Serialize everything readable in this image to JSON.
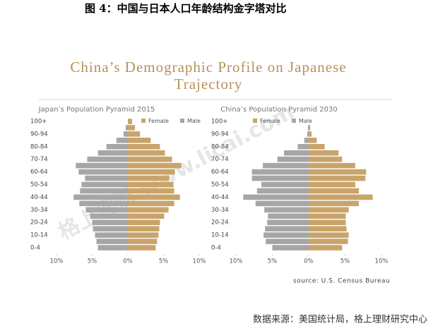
{
  "caption": "图 4：中国与日本人口年龄结构金字塔对比",
  "title_lines": [
    "China’s  Demographic Profile on Japanese",
    "Trajectory"
  ],
  "watermark": "格上理财 www.licai.com",
  "source": "source: U.S. Census  Bureau",
  "footer": "数据来源：美国统计局，格上理财研究中心",
  "chart_data": [
    {
      "type": "bar",
      "orientation": "horizontal",
      "title": "Japan’s Population Pyramid 2015",
      "categories": [
        "100+",
        null,
        "90-94",
        null,
        "80-84",
        null,
        "70-74",
        null,
        "60-64",
        null,
        "50-54",
        null,
        "40-44",
        null,
        "30-34",
        null,
        "20-24",
        null,
        "10-14",
        null,
        "0-4"
      ],
      "series": [
        {
          "name": "Female",
          "color": "#c9a46a",
          "values": [
            0.6,
            1.0,
            1.7,
            3.2,
            4.5,
            5.2,
            6.2,
            7.5,
            6.6,
            5.8,
            6.4,
            6.5,
            7.3,
            6.5,
            5.7,
            5.1,
            4.5,
            4.4,
            4.3,
            4.1,
            3.9
          ]
        },
        {
          "name": "Male",
          "color": "#a6a6a6",
          "values": [
            0,
            -0.3,
            -0.6,
            -1.6,
            -3.0,
            -4.2,
            -5.7,
            -7.3,
            -6.9,
            -6.0,
            -6.5,
            -6.7,
            -7.6,
            -6.8,
            -5.9,
            -5.3,
            -5.0,
            -4.9,
            -4.6,
            -4.4,
            -4.2
          ]
        }
      ],
      "xlim": [
        -10,
        10
      ],
      "xticks": [
        {
          "value": -10,
          "label": "10%"
        },
        {
          "value": -5,
          "label": "5%"
        },
        {
          "value": 0,
          "label": "0%"
        },
        {
          "value": 5,
          "label": "5%"
        },
        {
          "value": 10,
          "label": "10%"
        }
      ],
      "legend": "top-right"
    },
    {
      "type": "bar",
      "orientation": "horizontal",
      "title": "China’s Population Pyramid 2030",
      "categories": [
        "100+",
        null,
        "90-94",
        null,
        "80-84",
        null,
        "70-74",
        null,
        "60-64",
        null,
        "50-54",
        null,
        "40-44",
        null,
        "30-34",
        null,
        "20-24",
        null,
        "10-14",
        null,
        "0-4"
      ],
      "series": [
        {
          "name": "Female",
          "color": "#c9a46a",
          "values": [
            0,
            0.2,
            0.4,
            1.1,
            2.2,
            4.1,
            4.6,
            6.4,
            7.9,
            7.8,
            6.4,
            6.9,
            8.8,
            6.9,
            5.5,
            5.1,
            5.1,
            5.2,
            5.5,
            5.4,
            4.6
          ]
        },
        {
          "name": "Male",
          "color": "#a6a6a6",
          "values": [
            0,
            -0.1,
            -0.2,
            -0.6,
            -1.5,
            -3.4,
            -4.3,
            -6.3,
            -7.8,
            -7.8,
            -6.5,
            -7.1,
            -9.0,
            -7.3,
            -6.1,
            -5.6,
            -5.7,
            -6.0,
            -6.2,
            -5.9,
            -5.0
          ]
        }
      ],
      "xlim": [
        -10,
        10
      ],
      "xticks": [
        {
          "value": -10,
          "label": "10%"
        },
        {
          "value": -5,
          "label": "5%"
        },
        {
          "value": 0,
          "label": "0%"
        },
        {
          "value": 5,
          "label": "5%"
        },
        {
          "value": 10,
          "label": "10%"
        }
      ],
      "legend": "top-right"
    }
  ]
}
